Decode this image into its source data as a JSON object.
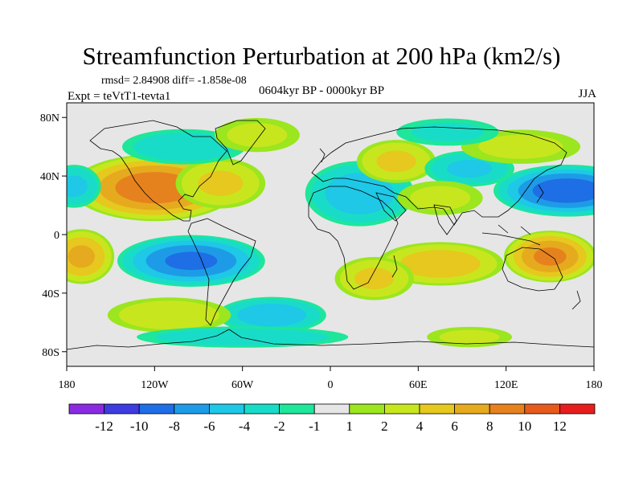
{
  "title": "Streamfunction Perturbation at 200 hPa (km2/s)",
  "stats": "rmsd= 2.84908 diff= -1.858e-08",
  "experiment": "Expt = teVtT1-tevta1",
  "period": "0604kyr BP - 0000kyr BP",
  "season": "JJA",
  "lat_ticks": [
    {
      "lat": 80,
      "label": "80N"
    },
    {
      "lat": 40,
      "label": "40N"
    },
    {
      "lat": 0,
      "label": "0"
    },
    {
      "lat": -40,
      "label": "40S"
    },
    {
      "lat": -80,
      "label": "80S"
    }
  ],
  "lon_ticks": [
    {
      "lon": -180,
      "label": "180"
    },
    {
      "lon": -120,
      "label": "120W"
    },
    {
      "lon": -60,
      "label": "60W"
    },
    {
      "lon": 0,
      "label": "0"
    },
    {
      "lon": 60,
      "label": "60E"
    },
    {
      "lon": 120,
      "label": "120E"
    },
    {
      "lon": 180,
      "label": "180"
    }
  ],
  "colorbar": {
    "colors": [
      "#8a2be2",
      "#3c3ce0",
      "#1e6ee6",
      "#1e9be6",
      "#1ec8e6",
      "#19dcc8",
      "#1ee69b",
      "#e6e6e6",
      "#9be61e",
      "#c8e61e",
      "#e6c81e",
      "#e6aa1e",
      "#e6821e",
      "#e65a1e",
      "#e61e1e"
    ],
    "labels": [
      "-12",
      "-10",
      "-8",
      "-6",
      "-4",
      "-2",
      "-1",
      "1",
      "2",
      "4",
      "6",
      "8",
      "10",
      "12"
    ]
  },
  "chart_data": {
    "type": "heatmap",
    "title": "Streamfunction Perturbation at 200 hPa (km2/s)",
    "units": "km2/s",
    "lon_range": [
      -180,
      180
    ],
    "lat_range": [
      -90,
      90
    ],
    "blobs": [
      {
        "lon": -120,
        "lat": 32,
        "value": 9,
        "wlon": 45,
        "wlat": 18
      },
      {
        "lon": -75,
        "lat": 35,
        "value": 4,
        "wlon": 25,
        "wlat": 14
      },
      {
        "lon": -175,
        "lat": 33,
        "value": -4,
        "wlon": 15,
        "wlat": 12
      },
      {
        "lon": -100,
        "lat": 60,
        "value": -3,
        "wlon": 35,
        "wlat": 10
      },
      {
        "lon": -50,
        "lat": 68,
        "value": 2,
        "wlon": 25,
        "wlat": 10
      },
      {
        "lon": 20,
        "lat": 28,
        "value": -5,
        "wlon": 30,
        "wlat": 18
      },
      {
        "lon": 45,
        "lat": 50,
        "value": 4,
        "wlon": 22,
        "wlat": 12
      },
      {
        "lon": 95,
        "lat": 45,
        "value": -4,
        "wlon": 25,
        "wlat": 10
      },
      {
        "lon": 75,
        "lat": 25,
        "value": 2,
        "wlon": 25,
        "wlat": 10
      },
      {
        "lon": 162,
        "lat": 30,
        "value": -9,
        "wlon": 40,
        "wlat": 14
      },
      {
        "lon": 130,
        "lat": 60,
        "value": 2,
        "wlon": 35,
        "wlat": 10
      },
      {
        "lon": 80,
        "lat": 70,
        "value": -2,
        "wlon": 30,
        "wlat": 8
      },
      {
        "lon": -170,
        "lat": -15,
        "value": 6,
        "wlon": 18,
        "wlat": 15
      },
      {
        "lon": -95,
        "lat": -18,
        "value": -8,
        "wlon": 40,
        "wlat": 14
      },
      {
        "lon": 75,
        "lat": -20,
        "value": 5,
        "wlon": 35,
        "wlat": 12
      },
      {
        "lon": 150,
        "lat": -15,
        "value": 8,
        "wlon": 25,
        "wlat": 14
      },
      {
        "lon": 30,
        "lat": -30,
        "value": 4,
        "wlon": 22,
        "wlat": 12
      },
      {
        "lon": -40,
        "lat": -55,
        "value": -5,
        "wlon": 30,
        "wlat": 10
      },
      {
        "lon": -110,
        "lat": -55,
        "value": 3,
        "wlon": 35,
        "wlat": 10
      },
      {
        "lon": -60,
        "lat": -70,
        "value": -3,
        "wlon": 60,
        "wlat": 6
      },
      {
        "lon": 95,
        "lat": -70,
        "value": 2,
        "wlon": 25,
        "wlat": 6
      }
    ]
  }
}
